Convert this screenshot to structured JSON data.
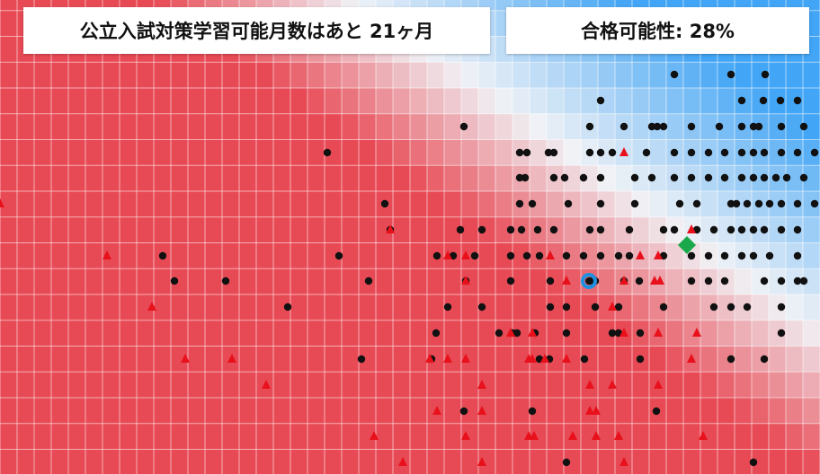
{
  "header": {
    "months_label": "公立入試対策学習可能月数はあと 21ヶ月",
    "probability_label": "合格可能性: 28%"
  }
}
